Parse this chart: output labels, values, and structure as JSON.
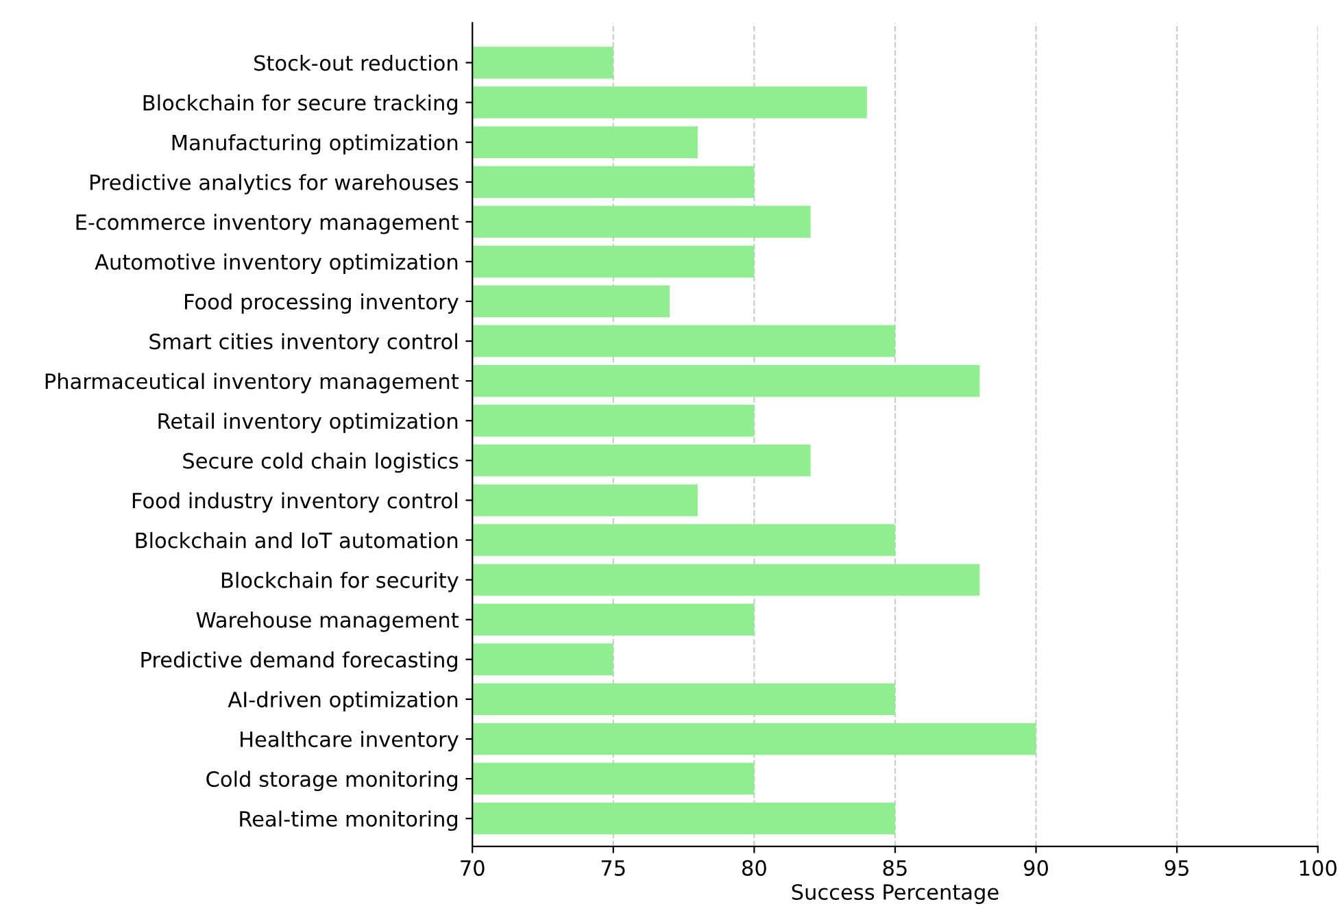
{
  "chart_data": {
    "type": "bar",
    "orientation": "horizontal",
    "xlabel": "Success Percentage",
    "categories": [
      "Stock-out reduction",
      "Blockchain for secure tracking",
      "Manufacturing optimization",
      "Predictive analytics for warehouses",
      "E-commerce inventory management",
      "Automotive inventory optimization",
      "Food processing inventory",
      "Smart cities inventory control",
      "Pharmaceutical inventory management",
      "Retail inventory optimization",
      "Secure cold chain logistics",
      "Food industry inventory control",
      "Blockchain and IoT automation",
      "Blockchain for security",
      "Warehouse management",
      "Predictive demand forecasting",
      "AI-driven optimization",
      "Healthcare inventory",
      "Cold storage monitoring",
      "Real-time monitoring"
    ],
    "values": [
      75,
      84,
      78,
      80,
      82,
      80,
      77,
      85,
      88,
      80,
      82,
      78,
      85,
      88,
      80,
      75,
      85,
      90,
      80,
      85
    ],
    "color": "#90ee90",
    "xlim": [
      70,
      100
    ],
    "xticks": [
      70,
      75,
      80,
      85,
      90,
      95,
      100
    ],
    "grid": "x"
  }
}
